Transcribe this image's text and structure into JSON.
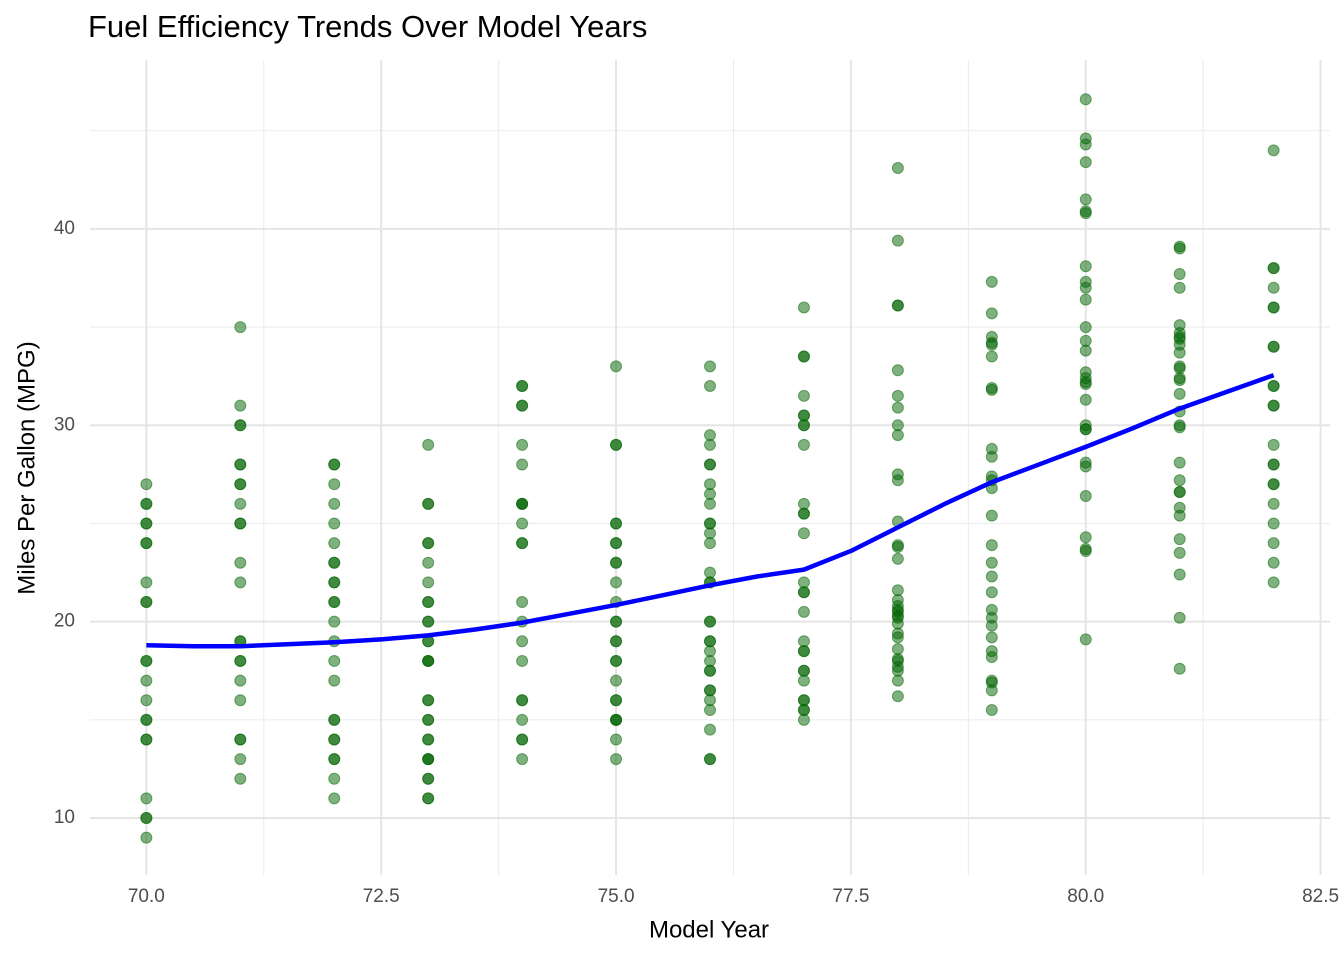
{
  "chart_data": {
    "type": "scatter",
    "title": "Fuel Efficiency Trends Over Model Years",
    "x_label": "Model Year",
    "y_label": "Miles Per Gallon (MPG)",
    "xlim": [
      69.4,
      82.6
    ],
    "ylim": [
      7.1,
      48.6
    ],
    "xticks": [
      {
        "value": 70,
        "label": "70.0"
      },
      {
        "value": 72.5,
        "label": "72.5"
      },
      {
        "value": 75,
        "label": "75.0"
      },
      {
        "value": 77.5,
        "label": "77.5"
      },
      {
        "value": 80,
        "label": "80.0"
      },
      {
        "value": 82.5,
        "label": "82.5"
      }
    ],
    "yticks": [
      10,
      20,
      30,
      40
    ],
    "x_minor_gridlines": [
      71.25,
      73.75,
      76.25,
      78.75,
      81.25
    ],
    "y_minor_gridlines": [
      15,
      25,
      35,
      45
    ],
    "grid": true,
    "point_color": "#006400",
    "point_opacity": 0.5,
    "groups": [
      {
        "x": 70,
        "y": [
          27,
          26,
          26,
          25,
          25,
          24,
          24,
          22,
          21,
          21,
          18,
          18,
          17,
          16,
          15,
          15,
          14,
          14,
          11,
          10,
          10,
          9
        ]
      },
      {
        "x": 71,
        "y": [
          35,
          31,
          30,
          30,
          28,
          28,
          27,
          27,
          26,
          25,
          25,
          23,
          22,
          19,
          19,
          18,
          18,
          17,
          16,
          14,
          14,
          13,
          12
        ]
      },
      {
        "x": 72,
        "y": [
          28,
          28,
          27,
          26,
          25,
          24,
          23,
          23,
          22,
          22,
          21,
          21,
          20,
          19,
          18,
          17,
          15,
          15,
          14,
          14,
          13,
          13,
          12,
          11
        ]
      },
      {
        "x": 73,
        "y": [
          29,
          26,
          26,
          24,
          24,
          23,
          22,
          21,
          21,
          20,
          20,
          19,
          19,
          18,
          18,
          18,
          16,
          16,
          15,
          15,
          14,
          14,
          13,
          13,
          13,
          12,
          12,
          11,
          11
        ]
      },
      {
        "x": 74,
        "y": [
          32,
          32,
          31,
          31,
          29,
          28,
          26,
          26,
          26,
          25,
          24,
          24,
          21,
          20,
          19,
          18,
          16,
          16,
          15,
          14,
          14,
          13
        ]
      },
      {
        "x": 75,
        "y": [
          33,
          29,
          29,
          25,
          25,
          24,
          24,
          23,
          23,
          22,
          21,
          20,
          20,
          19,
          19,
          18,
          18,
          17,
          16,
          16,
          15,
          15,
          15,
          14,
          13
        ]
      },
      {
        "x": 76,
        "y": [
          33,
          32,
          29.5,
          29,
          28,
          28,
          27,
          26.5,
          26,
          25,
          25,
          24.5,
          24,
          22.5,
          22,
          22,
          20,
          20,
          19,
          19,
          18.5,
          18,
          17.5,
          17.5,
          16.5,
          16.5,
          16,
          15.5,
          14.5,
          13,
          13
        ]
      },
      {
        "x": 77,
        "y": [
          36,
          33.5,
          33.5,
          31.5,
          30.5,
          30.5,
          30,
          30,
          29,
          26,
          25.5,
          25.5,
          24.5,
          22,
          21.5,
          21.5,
          20.5,
          19,
          18.5,
          18.5,
          17.5,
          17.5,
          17,
          16,
          16,
          15.5,
          15.5,
          15
        ]
      },
      {
        "x": 78,
        "y": [
          43.1,
          39.4,
          36.1,
          36.1,
          32.8,
          31.5,
          30.9,
          30,
          29.5,
          27.5,
          27.2,
          25.1,
          23.9,
          23.8,
          23.2,
          21.6,
          21.1,
          20.8,
          20.6,
          20.5,
          20.3,
          20.2,
          19.9,
          19.4,
          19.2,
          18.6,
          18.1,
          18,
          17.7,
          17.5,
          17,
          16.2
        ]
      },
      {
        "x": 79,
        "y": [
          37.3,
          35.7,
          34.5,
          34.2,
          34.1,
          33.5,
          31.9,
          31.8,
          28.8,
          28.4,
          27.4,
          27.2,
          26.8,
          25.4,
          23.9,
          23,
          22.3,
          21.5,
          20.6,
          20.2,
          19.8,
          19.2,
          18.5,
          18.2,
          17,
          16.9,
          16.5,
          15.5
        ]
      },
      {
        "x": 80,
        "y": [
          46.6,
          44.6,
          44.3,
          43.4,
          41.5,
          40.9,
          40.8,
          38.1,
          37.3,
          37,
          36.4,
          35,
          34.3,
          33.8,
          32.7,
          32.4,
          32.2,
          32.1,
          31.3,
          30,
          29.8,
          29.8,
          28.1,
          27.9,
          26.4,
          24.3,
          23.7,
          23.6,
          19.1
        ]
      },
      {
        "x": 81,
        "y": [
          39.1,
          39,
          37.7,
          37,
          35.1,
          34.7,
          34.5,
          34.4,
          34.1,
          33.7,
          33,
          32.9,
          32.4,
          32.3,
          31.6,
          30.7,
          30,
          29.9,
          28.1,
          27.2,
          26.6,
          26.6,
          25.8,
          25.4,
          24.2,
          23.5,
          22.4,
          20.2,
          17.6
        ]
      },
      {
        "x": 82,
        "y": [
          44,
          38,
          38,
          37,
          36,
          36,
          34,
          34,
          32,
          32,
          31,
          31,
          29,
          28,
          28,
          27,
          27,
          26,
          25,
          24,
          23,
          22
        ]
      }
    ],
    "smooth": {
      "color": "#0000ff",
      "x": [
        70,
        70.5,
        71,
        71.5,
        72,
        72.5,
        73,
        73.5,
        74,
        74.5,
        75,
        75.5,
        76,
        76.5,
        77,
        77.5,
        78,
        78.5,
        79,
        79.5,
        80,
        80.5,
        81,
        81.5,
        82
      ],
      "y": [
        18.8,
        18.75,
        18.75,
        18.85,
        18.95,
        19.1,
        19.3,
        19.6,
        19.95,
        20.4,
        20.85,
        21.35,
        21.85,
        22.3,
        22.65,
        23.6,
        24.8,
        26,
        27.1,
        28,
        28.9,
        29.85,
        30.85,
        31.7,
        32.55
      ]
    }
  }
}
